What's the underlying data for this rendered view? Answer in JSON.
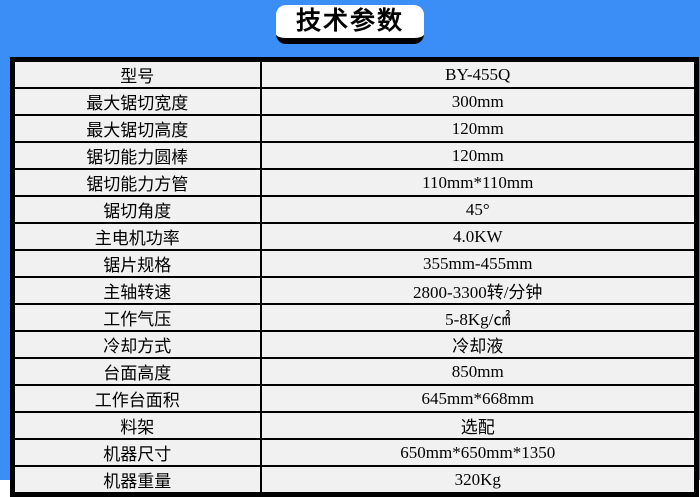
{
  "colors": {
    "background": "#3A8EF5",
    "badge_background": "#FFFFFF",
    "border": "#000000",
    "cell_background": "#F1F1F1",
    "text": "#000000"
  },
  "header": {
    "title": "技术参数"
  },
  "table": {
    "rows": [
      {
        "label": "型号",
        "value": "BY-455Q"
      },
      {
        "label": "最大锯切宽度",
        "value": "300mm"
      },
      {
        "label": "最大锯切高度",
        "value": "120mm"
      },
      {
        "label": "锯切能力圆棒",
        "value": "120mm"
      },
      {
        "label": "锯切能力方管",
        "value": "110mm*110mm"
      },
      {
        "label": "锯切角度",
        "value": "45°"
      },
      {
        "label": "主电机功率",
        "value": "4.0KW"
      },
      {
        "label": "锯片规格",
        "value": "355mm-455mm"
      },
      {
        "label": "主轴转速",
        "value": "2800-3300转/分钟"
      },
      {
        "label": "工作气压",
        "value": "5-8Kg/㎠"
      },
      {
        "label": "冷却方式",
        "value": "冷却液"
      },
      {
        "label": "台面高度",
        "value": "850mm"
      },
      {
        "label": "工作台面积",
        "value": "645mm*668mm"
      },
      {
        "label": "料架",
        "value": "选配"
      },
      {
        "label": "机器尺寸",
        "value": "650mm*650mm*1350"
      },
      {
        "label": "机器重量",
        "value": "320Kg"
      }
    ]
  }
}
